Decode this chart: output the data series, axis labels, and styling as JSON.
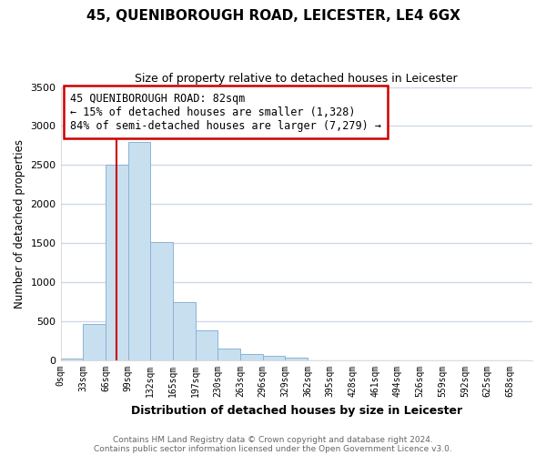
{
  "title": "45, QUENIBOROUGH ROAD, LEICESTER, LE4 6GX",
  "subtitle": "Size of property relative to detached houses in Leicester",
  "xlabel": "Distribution of detached houses by size in Leicester",
  "ylabel": "Number of detached properties",
  "bar_labels": [
    "0sqm",
    "33sqm",
    "66sqm",
    "99sqm",
    "132sqm",
    "165sqm",
    "197sqm",
    "230sqm",
    "263sqm",
    "296sqm",
    "329sqm",
    "362sqm",
    "395sqm",
    "428sqm",
    "461sqm",
    "494sqm",
    "526sqm",
    "559sqm",
    "592sqm",
    "625sqm",
    "658sqm"
  ],
  "bar_values": [
    20,
    470,
    2500,
    2800,
    1520,
    750,
    390,
    155,
    80,
    55,
    30,
    0,
    0,
    0,
    0,
    0,
    0,
    0,
    0,
    0,
    0
  ],
  "bar_color": "#c8dff0",
  "bar_edge_color": "#8ab4d4",
  "vline_color": "#cc0000",
  "annotation_title": "45 QUENIBOROUGH ROAD: 82sqm",
  "annotation_line1": "← 15% of detached houses are smaller (1,328)",
  "annotation_line2": "84% of semi-detached houses are larger (7,279) →",
  "annotation_box_facecolor": "#ffffff",
  "annotation_box_edgecolor": "#cc0000",
  "ylim": [
    0,
    3500
  ],
  "yticks": [
    0,
    500,
    1000,
    1500,
    2000,
    2500,
    3000,
    3500
  ],
  "grid_color": "#d0d8e8",
  "footer1": "Contains HM Land Registry data © Crown copyright and database right 2024.",
  "footer2": "Contains public sector information licensed under the Open Government Licence v3.0.",
  "bg_color": "#ffffff",
  "plot_bg_color": "#ffffff",
  "bin_edges_sqm": [
    0,
    33,
    66,
    99,
    132,
    165,
    197,
    230,
    263,
    296,
    329,
    362,
    395,
    428,
    461,
    494,
    526,
    559,
    592,
    625,
    658
  ],
  "vline_sqm": 82
}
